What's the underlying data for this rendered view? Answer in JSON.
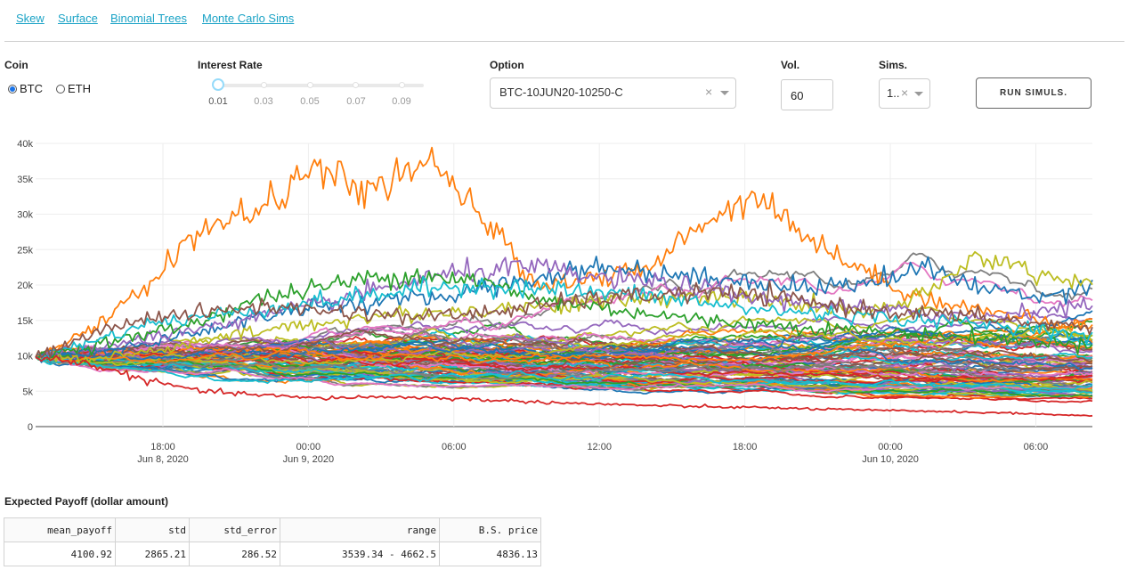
{
  "nav": {
    "links": [
      "Skew",
      "Surface",
      "Binomial Trees",
      "Monte Carlo Sims"
    ]
  },
  "controls": {
    "coin": {
      "label": "Coin",
      "options": [
        "BTC",
        "ETH"
      ],
      "selected": "BTC"
    },
    "interest_rate": {
      "label": "Interest Rate",
      "marks": [
        "0.01",
        "0.03",
        "0.05",
        "0.07",
        "0.09"
      ],
      "value": 0.01
    },
    "option": {
      "label": "Option",
      "value": "BTC-10JUN20-10250-C",
      "clear_glyph": "×"
    },
    "vol": {
      "label": "Vol.",
      "value": "60"
    },
    "sims": {
      "label": "Sims.",
      "value": "1..",
      "clear_glyph": "×"
    },
    "run_button": "RUN SIMULS."
  },
  "chart_data": {
    "type": "line",
    "title": "",
    "xlabel": "",
    "ylabel": "",
    "ylim": [
      0,
      40000
    ],
    "y_ticks": [
      0,
      5000,
      10000,
      15000,
      20000,
      25000,
      30000,
      35000,
      40000
    ],
    "y_tick_labels": [
      "0",
      "5k",
      "10k",
      "15k",
      "20k",
      "25k",
      "30k",
      "35k",
      "40k"
    ],
    "xlim": [
      "2020-06-08 12:45",
      "2020-06-10 08:20"
    ],
    "x_ticks": [
      {
        "t": "2020-06-08 18:00",
        "label": "18:00",
        "sublabel": "Jun 8, 2020"
      },
      {
        "t": "2020-06-09 00:00",
        "label": "00:00",
        "sublabel": "Jun 9, 2020"
      },
      {
        "t": "2020-06-09 06:00",
        "label": "06:00",
        "sublabel": ""
      },
      {
        "t": "2020-06-09 12:00",
        "label": "12:00",
        "sublabel": ""
      },
      {
        "t": "2020-06-09 18:00",
        "label": "18:00",
        "sublabel": ""
      },
      {
        "t": "2020-06-10 00:00",
        "label": "00:00",
        "sublabel": "Jun 10, 2020"
      },
      {
        "t": "2020-06-10 06:00",
        "label": "06:00",
        "sublabel": ""
      }
    ],
    "grid": true,
    "legend": "none",
    "start_value": 9800,
    "num_paths": 100,
    "colors": [
      "#1f77b4",
      "#ff7f0e",
      "#2ca02c",
      "#d62728",
      "#9467bd",
      "#8c564b",
      "#e377c2",
      "#7f7f7f",
      "#bcbd22",
      "#17becf"
    ],
    "highlighted_paths": [
      {
        "color": "#ff7f0e",
        "values": [
          9800,
          13500,
          20000,
          28000,
          30500,
          36500,
          33000,
          37500,
          30000,
          20000,
          21000,
          22000,
          29000,
          33000,
          26000,
          21500,
          18000,
          16500,
          15000,
          14000
        ]
      },
      {
        "color": "#1f77b4",
        "values": [
          9800,
          10200,
          11800,
          13500,
          15500,
          17000,
          17500,
          18000,
          19500,
          21000,
          22500,
          22000,
          21000,
          20500,
          19500,
          20500,
          22500,
          19500,
          18500,
          20000
        ]
      },
      {
        "color": "#bcbd22",
        "values": [
          9800,
          9600,
          10500,
          12000,
          13500,
          14500,
          15500,
          16000,
          16500,
          17000,
          17500,
          18000,
          18500,
          18000,
          17000,
          16000,
          18500,
          24500,
          21500,
          20500
        ]
      },
      {
        "color": "#9467bd",
        "values": [
          9800,
          11000,
          12500,
          14000,
          15500,
          17000,
          19000,
          21000,
          22000,
          22500,
          21000,
          20500,
          19500,
          18000,
          17500,
          16500,
          16000,
          15500,
          16500,
          17000
        ]
      },
      {
        "color": "#2ca02c",
        "values": [
          9800,
          11500,
          13000,
          15000,
          18000,
          19500,
          21000,
          21500,
          20500,
          18000,
          17000,
          16000,
          15000,
          14500,
          14000,
          13500,
          13000,
          12500,
          12000,
          11500
        ]
      },
      {
        "color": "#17becf",
        "values": [
          9800,
          12000,
          14500,
          15500,
          16500,
          17500,
          18500,
          19500,
          20000,
          19500,
          19000,
          18500,
          17500,
          16500,
          16000,
          15500,
          15000,
          14500,
          14000,
          12500
        ]
      },
      {
        "color": "#8c564b",
        "values": [
          9800,
          13000,
          15500,
          16000,
          17000,
          16500,
          16000,
          15500,
          16000,
          17000,
          18000,
          18500,
          19000,
          18500,
          17500,
          16500,
          16000,
          15500,
          14500,
          14000
        ]
      },
      {
        "color": "#d62728",
        "values": [
          9800,
          8800,
          6500,
          5000,
          4500,
          4000,
          4200,
          4100,
          3800,
          3500,
          3200,
          3000,
          2800,
          2700,
          2500,
          2300,
          2200,
          2000,
          1800,
          1500
        ]
      }
    ]
  },
  "payoff": {
    "title": "Expected Payoff (dollar amount)",
    "columns": [
      "mean_payoff",
      "std",
      "std_error",
      "range",
      "B.S. price"
    ],
    "row": [
      "4100.92",
      "2865.21",
      "286.52",
      "3539.34 - 4662.5",
      "4836.13"
    ]
  }
}
